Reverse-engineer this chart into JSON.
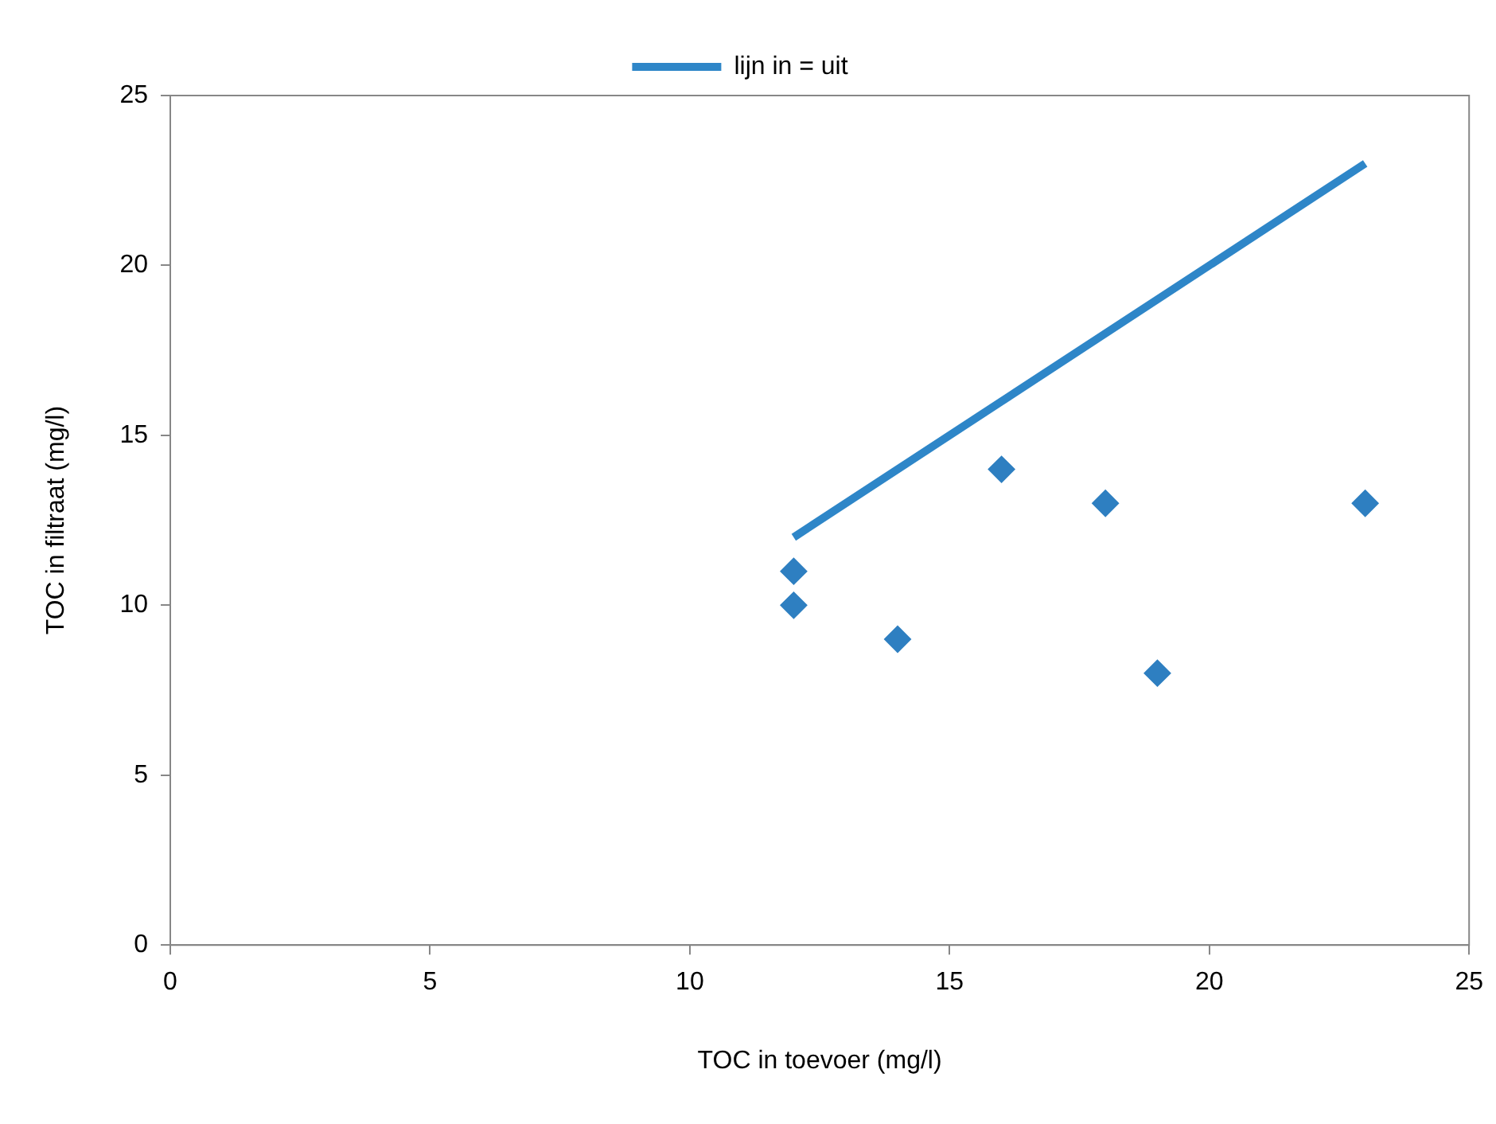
{
  "chart_data": {
    "type": "scatter",
    "xlabel": "TOC in toevoer (mg/l)",
    "ylabel": "TOC in filtraat (mg/l)",
    "xlim": [
      0,
      25
    ],
    "xticks": [
      0,
      5,
      10,
      15,
      20,
      25
    ],
    "ylim": [
      0,
      25
    ],
    "yticks": [
      0,
      5,
      10,
      15,
      20,
      25
    ],
    "legend": "top",
    "marker": "diamond",
    "series": [
      {
        "type": "scatter",
        "color": "#2e7fc1",
        "x": [
          12,
          12,
          14,
          16,
          18,
          19,
          23
        ],
        "values": [
          11,
          10,
          9,
          14,
          13,
          8,
          13
        ]
      },
      {
        "type": "line",
        "name": "lijn in = uit",
        "color": "#2e86c8",
        "marker": "none",
        "line_style": "solid",
        "x": [
          12,
          23
        ],
        "values": [
          12,
          23
        ]
      }
    ]
  }
}
